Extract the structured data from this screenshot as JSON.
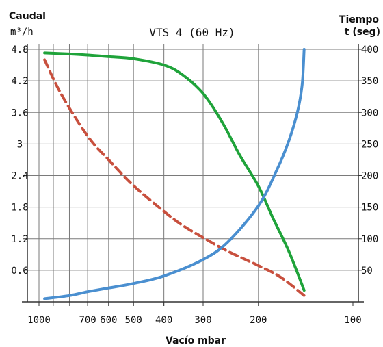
{
  "chart_data": {
    "type": "line",
    "title": "VTS 4 (60 Hz)",
    "xlabel": "Vacío mbar",
    "x_scale": "log",
    "x_reversed": true,
    "xlim": [
      1000,
      100
    ],
    "x_ticks": [
      {
        "value": 1000,
        "label": "1000"
      },
      {
        "value": 700,
        "label": "700"
      },
      {
        "value": 600,
        "label": "600"
      },
      {
        "value": 500,
        "label": "500"
      },
      {
        "value": 400,
        "label": "400"
      },
      {
        "value": 300,
        "label": "300"
      },
      {
        "value": 200,
        "label": "200"
      },
      {
        "value": 100,
        "label": "100"
      }
    ],
    "y_left": {
      "label_line1": "Caudal",
      "label_line2": "m³/h",
      "ylim": [
        0,
        4.8
      ],
      "ticks": [
        {
          "value": 0.6,
          "label": "0.6"
        },
        {
          "value": 1.2,
          "label": "1.2"
        },
        {
          "value": 1.8,
          "label": "1.8"
        },
        {
          "value": 2.4,
          "label": "2.4"
        },
        {
          "value": 3,
          "label": "3"
        },
        {
          "value": 3.6,
          "label": "3.6"
        },
        {
          "value": 4.2,
          "label": "4.2"
        },
        {
          "value": 4.8,
          "label": "4.8"
        }
      ]
    },
    "y_right": {
      "label_line1": "Tiempo",
      "label_line2": "t (seg)",
      "ylim": [
        0,
        400
      ],
      "ticks": [
        {
          "value": 50,
          "label": "50"
        },
        {
          "value": 100,
          "label": "100"
        },
        {
          "value": 150,
          "label": "150"
        },
        {
          "value": 200,
          "label": "200"
        },
        {
          "value": 250,
          "label": "250"
        },
        {
          "value": 300,
          "label": "300"
        },
        {
          "value": 350,
          "label": "350"
        },
        {
          "value": 400,
          "label": "400"
        }
      ]
    },
    "grid": true,
    "series": [
      {
        "axis": "left",
        "color": "#1fa33a",
        "style": "solid",
        "points": [
          [
            960,
            4.73
          ],
          [
            800,
            4.71
          ],
          [
            700,
            4.69
          ],
          [
            600,
            4.66
          ],
          [
            500,
            4.62
          ],
          [
            400,
            4.5
          ],
          [
            350,
            4.32
          ],
          [
            300,
            3.96
          ],
          [
            260,
            3.4
          ],
          [
            230,
            2.8
          ],
          [
            200,
            2.2
          ],
          [
            180,
            1.6
          ],
          [
            160,
            0.96
          ],
          [
            143,
            0.22
          ]
        ]
      },
      {
        "axis": "left",
        "color": "#c8503e",
        "style": "dashed",
        "points": [
          [
            960,
            4.6
          ],
          [
            850,
            3.95
          ],
          [
            700,
            3.15
          ],
          [
            600,
            2.7
          ],
          [
            500,
            2.21
          ],
          [
            400,
            1.72
          ],
          [
            350,
            1.46
          ],
          [
            300,
            1.22
          ],
          [
            250,
            0.96
          ],
          [
            200,
            0.69
          ],
          [
            170,
            0.47
          ],
          [
            143,
            0.12
          ]
        ]
      },
      {
        "axis": "right",
        "color": "#4a8fd0",
        "style": "solid",
        "points": [
          [
            960,
            5
          ],
          [
            800,
            10
          ],
          [
            700,
            16
          ],
          [
            600,
            22
          ],
          [
            500,
            29
          ],
          [
            400,
            41
          ],
          [
            300,
            67
          ],
          [
            250,
            95
          ],
          [
            200,
            152
          ],
          [
            175,
            208
          ],
          [
            160,
            255
          ],
          [
            150,
            302
          ],
          [
            145,
            345
          ],
          [
            143,
            400
          ]
        ]
      }
    ]
  }
}
